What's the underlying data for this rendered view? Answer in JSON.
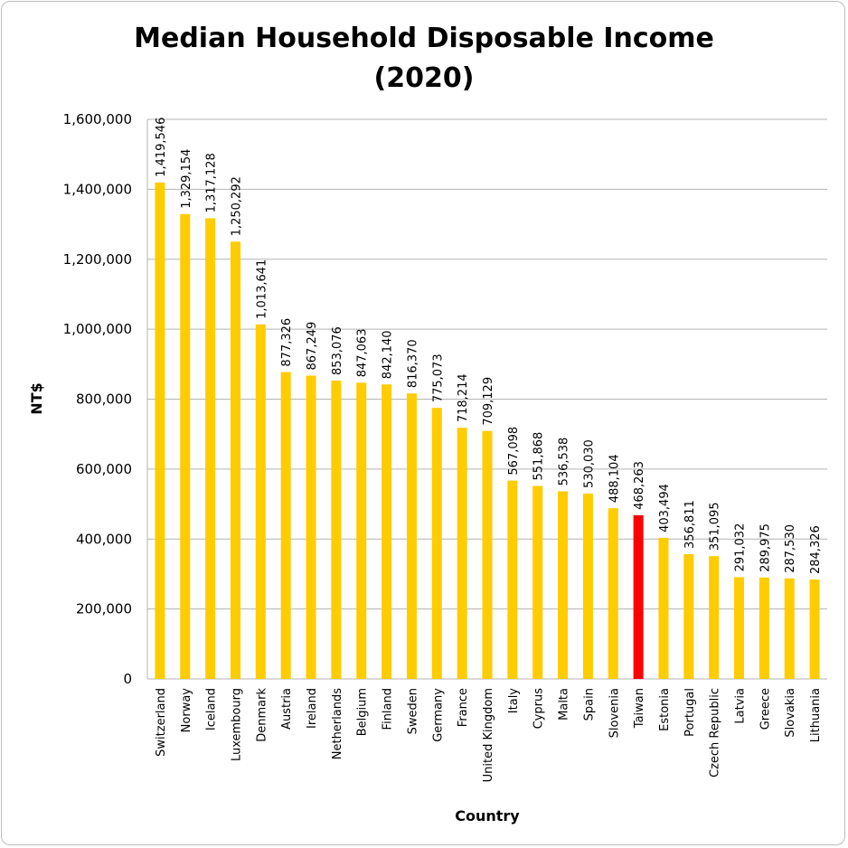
{
  "chart_data": {
    "type": "bar",
    "title": "Median Household Disposable Income",
    "subtitle": "(2020)",
    "xlabel": "Country",
    "ylabel": "NT$",
    "ylim": [
      0,
      1600000
    ],
    "yticks": [
      "0",
      "200,000",
      "400,000",
      "600,000",
      "800,000",
      "1,000,000",
      "1,200,000",
      "1,400,000",
      "1,600,000"
    ],
    "grid": "horizontal",
    "colors": {
      "default": "#FFCC00",
      "highlight": "#FF0000",
      "grid": "#b3b3b3"
    },
    "highlight_category": "Taiwan",
    "categories": [
      "Switzerland",
      "Norway",
      "Iceland",
      "Luxembourg",
      "Denmark",
      "Austria",
      "Ireland",
      "Netherlands",
      "Belgium",
      "Finland",
      "Sweden",
      "Germany",
      "France",
      "United Kingdom",
      "Italy",
      "Cyprus",
      "Malta",
      "Spain",
      "Slovenia",
      "Taiwan",
      "Estonia",
      "Portugal",
      "Czech Republic",
      "Latvia",
      "Greece",
      "Slovakia",
      "Lithuania"
    ],
    "values": [
      1419546,
      1329154,
      1317128,
      1250292,
      1013641,
      877326,
      867249,
      853076,
      847063,
      842140,
      816370,
      775073,
      718214,
      709129,
      567098,
      551868,
      536538,
      530030,
      488104,
      468263,
      403494,
      356811,
      351095,
      291032,
      289975,
      287530,
      284326
    ],
    "data_labels": [
      "1,419,546",
      "1,329,154",
      "1,317,128",
      "1,250,292",
      "1,013,641",
      "877,326",
      "867,249",
      "853,076",
      "847,063",
      "842,140",
      "816,370",
      "775,073",
      "718,214",
      "709,129",
      "567,098",
      "551,868",
      "536,538",
      "530,030",
      "488,104",
      "468,263",
      "403,494",
      "356,811",
      "351,095",
      "291,032",
      "289,975",
      "287,530",
      "284,326"
    ]
  }
}
